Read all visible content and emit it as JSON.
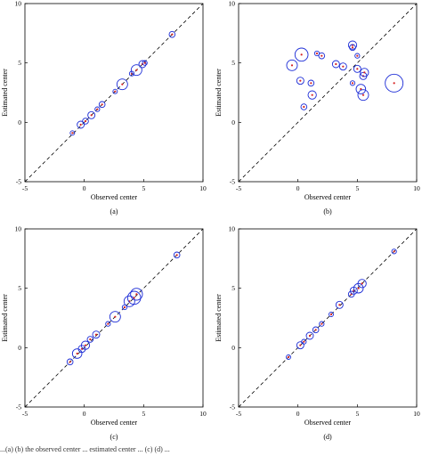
{
  "figure": {
    "caption_fragment": "...(a) (b) the observed center ... estimated center ... (c) (d) ..."
  },
  "colors": {
    "circle": "#1b2bd6",
    "center_marker": "#d62222",
    "reference_line": "#000000"
  },
  "chart_data": [
    {
      "type": "scatter",
      "panel": "(a)",
      "xlabel": "Observed center",
      "ylabel": "Estimated center",
      "xlim": [
        -5,
        10
      ],
      "ylim": [
        -5,
        10
      ],
      "xticks": [
        -5,
        0,
        5,
        10
      ],
      "yticks": [
        -5,
        0,
        5,
        10
      ],
      "reference_line": "y = x (dashed)",
      "points": [
        {
          "x": -1.0,
          "y": -0.9,
          "r": 0.15
        },
        {
          "x": -0.3,
          "y": -0.2,
          "r": 0.3
        },
        {
          "x": 0.1,
          "y": 0.1,
          "r": 0.25
        },
        {
          "x": 0.6,
          "y": 0.6,
          "r": 0.3
        },
        {
          "x": 1.1,
          "y": 1.1,
          "r": 0.2
        },
        {
          "x": 1.5,
          "y": 1.5,
          "r": 0.25
        },
        {
          "x": 2.6,
          "y": 2.6,
          "r": 0.15
        },
        {
          "x": 3.2,
          "y": 3.2,
          "r": 0.45
        },
        {
          "x": 4.0,
          "y": 4.1,
          "r": 0.2
        },
        {
          "x": 4.4,
          "y": 4.4,
          "r": 0.45
        },
        {
          "x": 4.9,
          "y": 4.9,
          "r": 0.3
        },
        {
          "x": 5.1,
          "y": 5.0,
          "r": 0.2
        },
        {
          "x": 7.4,
          "y": 7.4,
          "r": 0.25
        }
      ]
    },
    {
      "type": "scatter",
      "panel": "(b)",
      "xlabel": "Observed center",
      "ylabel": "Estimated center",
      "xlim": [
        -5,
        10
      ],
      "ylim": [
        -5,
        10
      ],
      "xticks": [
        -5,
        0,
        5,
        10
      ],
      "yticks": [
        -5,
        0,
        5,
        10
      ],
      "reference_line": "y = x (dashed)",
      "points": [
        {
          "x": -0.5,
          "y": 4.8,
          "r": 0.45
        },
        {
          "x": 0.3,
          "y": 5.7,
          "r": 0.55
        },
        {
          "x": 0.2,
          "y": 3.5,
          "r": 0.3
        },
        {
          "x": 0.5,
          "y": 1.3,
          "r": 0.25
        },
        {
          "x": 1.1,
          "y": 3.3,
          "r": 0.25
        },
        {
          "x": 1.2,
          "y": 2.3,
          "r": 0.35
        },
        {
          "x": 1.6,
          "y": 5.8,
          "r": 0.2
        },
        {
          "x": 2.0,
          "y": 5.6,
          "r": 0.25
        },
        {
          "x": 3.2,
          "y": 4.9,
          "r": 0.3
        },
        {
          "x": 3.8,
          "y": 4.7,
          "r": 0.3
        },
        {
          "x": 4.6,
          "y": 6.5,
          "r": 0.35
        },
        {
          "x": 4.6,
          "y": 6.3,
          "r": 0.25
        },
        {
          "x": 4.6,
          "y": 3.3,
          "r": 0.2
        },
        {
          "x": 5.0,
          "y": 5.6,
          "r": 0.2
        },
        {
          "x": 5.0,
          "y": 4.5,
          "r": 0.3
        },
        {
          "x": 5.3,
          "y": 2.8,
          "r": 0.4
        },
        {
          "x": 5.5,
          "y": 3.9,
          "r": 0.3
        },
        {
          "x": 5.6,
          "y": 4.2,
          "r": 0.35
        },
        {
          "x": 5.5,
          "y": 2.3,
          "r": 0.45
        },
        {
          "x": 8.1,
          "y": 3.3,
          "r": 0.75
        }
      ]
    },
    {
      "type": "scatter",
      "panel": "(c)",
      "xlabel": "Observed center",
      "ylabel": "Estimated center",
      "xlim": [
        -5,
        10
      ],
      "ylim": [
        -5,
        10
      ],
      "xticks": [
        -5,
        0,
        5,
        10
      ],
      "yticks": [
        -5,
        0,
        5,
        10
      ],
      "reference_line": "y = x (dashed)",
      "points": [
        {
          "x": -1.2,
          "y": -1.2,
          "r": 0.25
        },
        {
          "x": -0.6,
          "y": -0.5,
          "r": 0.4
        },
        {
          "x": -0.2,
          "y": -0.1,
          "r": 0.3
        },
        {
          "x": 0.1,
          "y": 0.2,
          "r": 0.35
        },
        {
          "x": 0.5,
          "y": 0.7,
          "r": 0.25
        },
        {
          "x": 1.0,
          "y": 1.1,
          "r": 0.3
        },
        {
          "x": 2.0,
          "y": 2.0,
          "r": 0.2
        },
        {
          "x": 2.6,
          "y": 2.6,
          "r": 0.45
        },
        {
          "x": 3.4,
          "y": 3.4,
          "r": 0.2
        },
        {
          "x": 3.8,
          "y": 3.9,
          "r": 0.45
        },
        {
          "x": 4.2,
          "y": 4.2,
          "r": 0.55
        },
        {
          "x": 4.4,
          "y": 4.5,
          "r": 0.5
        },
        {
          "x": 7.8,
          "y": 7.8,
          "r": 0.25
        }
      ]
    },
    {
      "type": "scatter",
      "panel": "(d)",
      "xlabel": "Observed center",
      "ylabel": "Estimated center",
      "xlim": [
        -5,
        10
      ],
      "ylim": [
        -5,
        10
      ],
      "xticks": [
        -5,
        0,
        5,
        10
      ],
      "yticks": [
        -5,
        0,
        5,
        10
      ],
      "reference_line": "y = x (dashed)",
      "points": [
        {
          "x": -0.8,
          "y": -0.8,
          "r": 0.15
        },
        {
          "x": 0.2,
          "y": 0.2,
          "r": 0.3
        },
        {
          "x": 0.5,
          "y": 0.5,
          "r": 0.2
        },
        {
          "x": 1.0,
          "y": 1.0,
          "r": 0.3
        },
        {
          "x": 1.5,
          "y": 1.5,
          "r": 0.25
        },
        {
          "x": 2.0,
          "y": 2.0,
          "r": 0.2
        },
        {
          "x": 2.8,
          "y": 2.8,
          "r": 0.15
        },
        {
          "x": 3.5,
          "y": 3.6,
          "r": 0.3
        },
        {
          "x": 4.5,
          "y": 4.5,
          "r": 0.25
        },
        {
          "x": 4.7,
          "y": 4.8,
          "r": 0.3
        },
        {
          "x": 5.1,
          "y": 5.0,
          "r": 0.4
        },
        {
          "x": 5.4,
          "y": 5.4,
          "r": 0.35
        },
        {
          "x": 8.1,
          "y": 8.1,
          "r": 0.2
        }
      ]
    }
  ]
}
